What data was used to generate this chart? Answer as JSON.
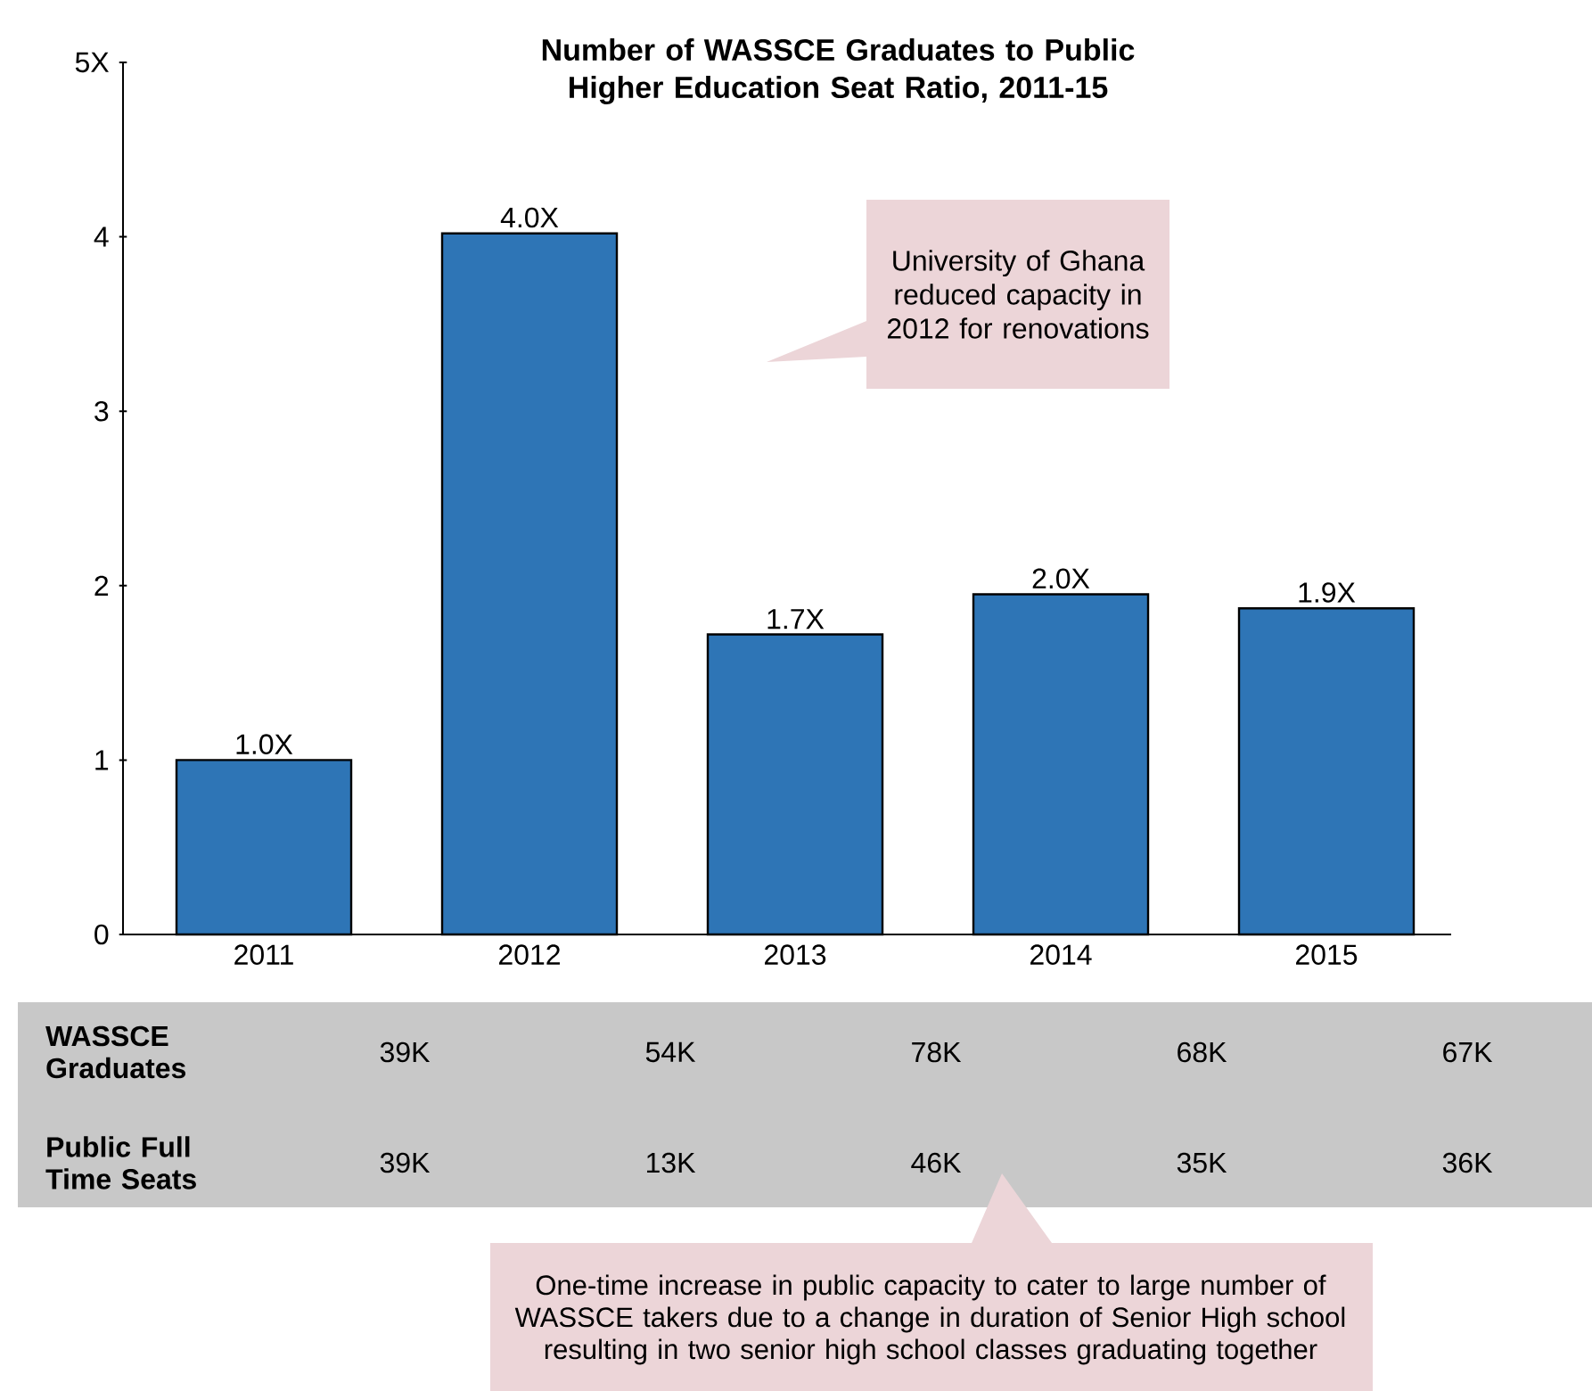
{
  "chart_data": {
    "type": "bar",
    "title": "Number of WASSCE Graduates to Public Higher Education Seat Ratio, 2011-15",
    "categories": [
      "2011",
      "2012",
      "2013",
      "2014",
      "2015"
    ],
    "values": [
      1.0,
      4.02,
      1.72,
      1.95,
      1.87
    ],
    "value_labels": [
      "1.0X",
      "4.0X",
      "1.7X",
      "2.0X",
      "1.9X"
    ],
    "color": "#2e75b6",
    "ylim": [
      0,
      5
    ],
    "yticks": [
      0,
      1,
      2,
      3,
      4,
      {
        "value": 5,
        "label": "5X"
      }
    ],
    "annotations": [
      "University of Ghana reduced capacity in 2012 for renovations",
      "One-time increase in public capacity to cater to large number of WASSCE takers due to a change in duration of Senior High school resulting in two senior high school classes graduating together",
      "WASSCE Graduates",
      "39K",
      "54K",
      "78K",
      "68K",
      "67K",
      "Public Full Time Seats",
      "39K",
      "13K",
      "46K",
      "35K",
      "36K"
    ]
  }
}
